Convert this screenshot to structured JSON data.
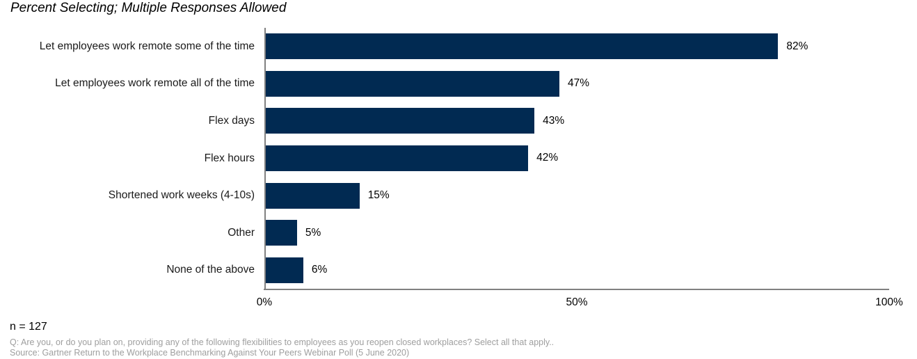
{
  "title": "Percent Selecting; Multiple Responses Allowed",
  "chart_data": {
    "type": "bar",
    "orientation": "horizontal",
    "title": "Percent Selecting; Multiple Responses Allowed",
    "categories": [
      "Let employees work remote some of the time",
      "Let employees work remote all of the time",
      "Flex days",
      "Flex hours",
      "Shortened work weeks (4-10s)",
      "Other",
      "None of the above"
    ],
    "values": [
      82,
      47,
      43,
      42,
      15,
      5,
      6
    ],
    "value_labels": [
      "82%",
      "47%",
      "43%",
      "42%",
      "15%",
      "5%",
      "6%"
    ],
    "x_ticks": [
      "0%",
      "50%",
      "100%"
    ],
    "x_tick_positions": [
      0,
      50,
      100
    ],
    "xlim": [
      0,
      100
    ],
    "grid": false,
    "legend": false,
    "bar_color": "#012a52",
    "axis_color": "#808080"
  },
  "footer": {
    "sample_size": "n = 127",
    "question": "Q: Are you, or do you plan on, providing any of the following flexibilities to employees as you reopen closed workplaces? Select all that apply..",
    "source": "Source: Gartner Return to the Workplace Benchmarking Against Your Peers Webinar Poll (5 June 2020)"
  }
}
